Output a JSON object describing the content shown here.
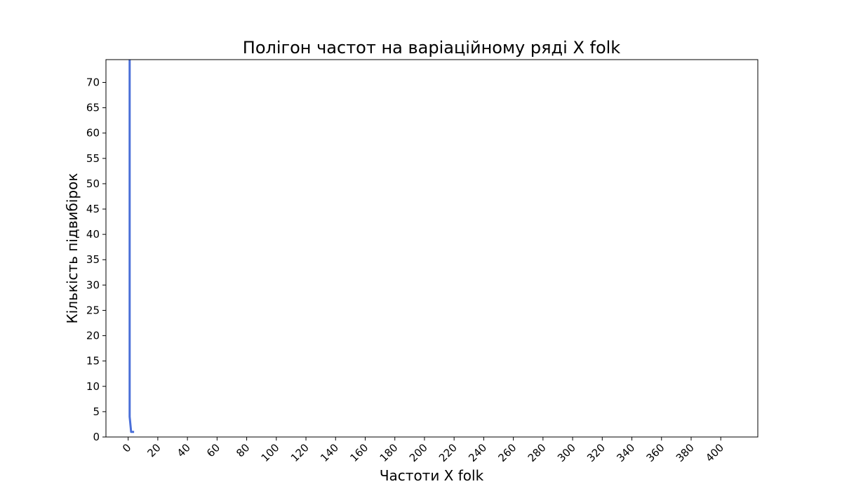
{
  "chart_data": {
    "type": "line",
    "title": "Полігон частот на варіаційному ряді X folk",
    "xlabel": "Частоти X folk",
    "ylabel": "Кількість підвибірок",
    "xlim": [
      -15,
      425
    ],
    "ylim": [
      0,
      74.5
    ],
    "x_ticks": [
      0,
      20,
      40,
      60,
      80,
      100,
      120,
      140,
      160,
      180,
      200,
      220,
      240,
      260,
      280,
      300,
      320,
      340,
      360,
      380,
      400
    ],
    "y_ticks": [
      0,
      5,
      10,
      15,
      20,
      25,
      30,
      35,
      40,
      45,
      50,
      55,
      60,
      65,
      70
    ],
    "x_tick_rotation": 45,
    "grid": false,
    "legend": false,
    "series": [
      {
        "color": "#4a6fd8",
        "x": [
          1,
          1,
          2,
          3,
          4
        ],
        "y": [
          80,
          4,
          1,
          1,
          1
        ]
      }
    ]
  }
}
